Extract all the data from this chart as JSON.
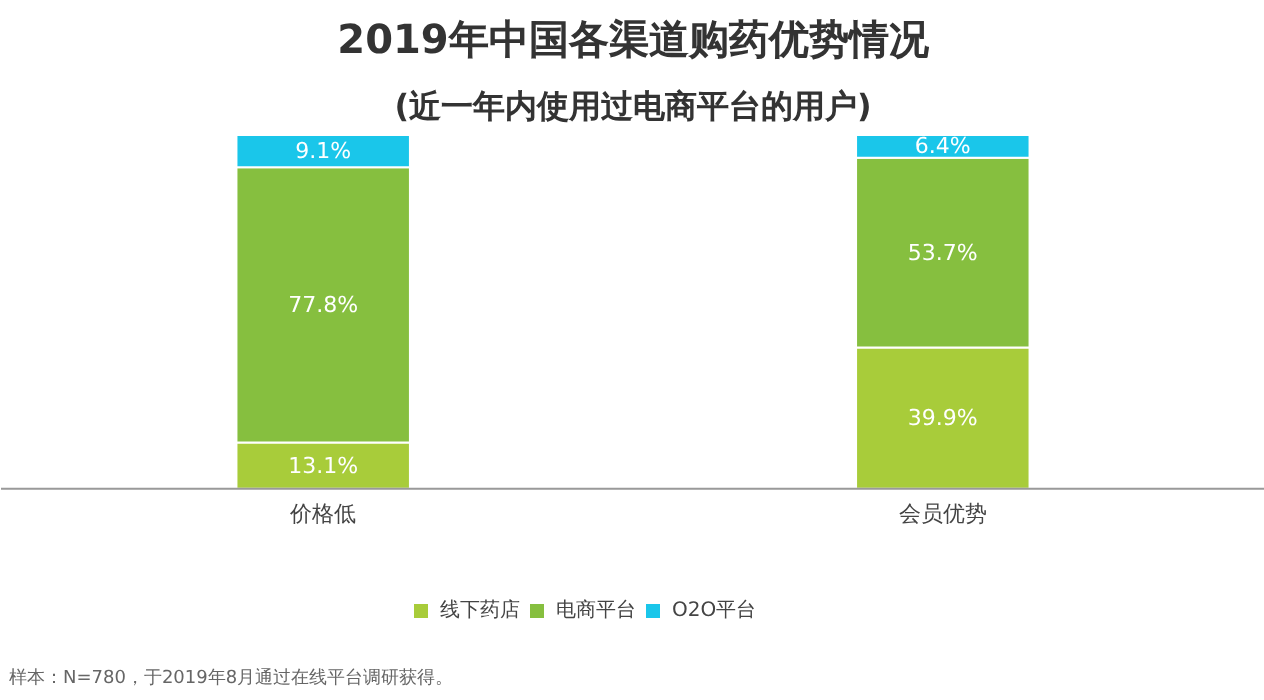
{
  "chart_data": {
    "type": "bar",
    "title": "2019年中国各渠道购药优势情况",
    "subtitle": "(近一年内使用过电商平台的用户)",
    "categories": [
      "价格低",
      "会员优势"
    ],
    "stacked": true,
    "legend": "bottom",
    "series": [
      {
        "name": "线下药店",
        "color": "#a8cc3a",
        "values": [
          13.1,
          39.9
        ],
        "value_labels": [
          "13.1%",
          "39.9%"
        ]
      },
      {
        "name": "电商平台",
        "color": "#86bf3f",
        "values": [
          77.8,
          53.7
        ],
        "value_labels": [
          "77.8%",
          "53.7%"
        ]
      },
      {
        "name": "O2O平台",
        "color": "#1ac6ea",
        "values": [
          9.1,
          6.4
        ],
        "value_labels": [
          "9.1%",
          "6.4%"
        ]
      }
    ],
    "annotations": [
      "样本：N=780，于2019年8月通过在线平台调研获得。"
    ]
  }
}
